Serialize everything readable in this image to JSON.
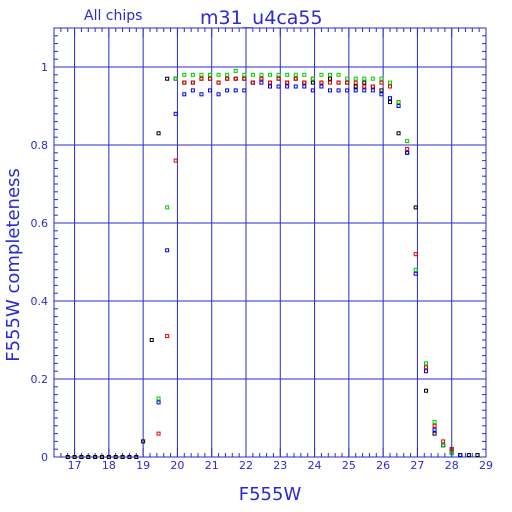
{
  "chart_data": {
    "type": "scatter",
    "title": "m31_u4ca55",
    "subtitle": "All chips",
    "xlabel": "F555W",
    "ylabel": "F555W completeness",
    "xlim": [
      16.4,
      29.0
    ],
    "ylim": [
      0,
      1.1
    ],
    "xticks": [
      17,
      18,
      19,
      20,
      21,
      22,
      23,
      24,
      25,
      26,
      27,
      28,
      29
    ],
    "xtick_labels": [
      "17",
      "18",
      "19",
      "20",
      "21",
      "22",
      "23",
      "24",
      "25",
      "26",
      "27",
      "28",
      "29"
    ],
    "yticks": [
      0,
      0.2,
      0.4,
      0.6,
      0.8,
      1.0
    ],
    "ytick_labels": [
      "0",
      "0.2",
      "0.4",
      "0.6",
      "0.8",
      "1"
    ],
    "grid": true,
    "legend": "none",
    "colors": {
      "axes": "#2a2ad0",
      "grid": "#2a2ad0"
    },
    "series": [
      {
        "color": "#000000",
        "x": [
          16.8,
          17.0,
          17.2,
          17.4,
          17.6,
          17.8,
          18.0,
          18.2,
          18.4,
          18.6,
          18.8,
          19.0,
          19.25,
          19.45,
          19.7,
          19.95,
          20.2,
          20.45,
          20.7,
          20.95,
          21.2,
          21.45,
          21.7,
          21.95,
          22.2,
          22.45,
          22.7,
          22.95,
          23.2,
          23.45,
          23.7,
          23.95,
          24.2,
          24.45,
          24.7,
          24.95,
          25.2,
          25.45,
          25.7,
          25.95,
          26.2,
          26.45,
          26.7,
          26.95,
          27.25,
          27.5,
          27.75,
          28.0,
          28.25,
          28.5,
          28.75
        ],
        "y": [
          0,
          0,
          0,
          0,
          0,
          0,
          0,
          0,
          0,
          0,
          0,
          0.04,
          0.3,
          0.83,
          0.97,
          0.97,
          0.96,
          0.96,
          0.97,
          0.97,
          0.96,
          0.97,
          0.97,
          0.97,
          0.96,
          0.97,
          0.96,
          0.97,
          0.96,
          0.97,
          0.96,
          0.96,
          0.96,
          0.97,
          0.96,
          0.96,
          0.95,
          0.96,
          0.95,
          0.94,
          0.91,
          0.83,
          0.78,
          0.64,
          0.17,
          0.06,
          0.03,
          0.02,
          0.005,
          0.005,
          0.005
        ]
      },
      {
        "color": "#0000e0",
        "x": [
          19.45,
          19.7,
          19.95,
          20.2,
          20.45,
          20.7,
          20.95,
          21.2,
          21.45,
          21.7,
          21.95,
          22.2,
          22.45,
          22.7,
          22.95,
          23.2,
          23.45,
          23.7,
          23.95,
          24.2,
          24.45,
          24.7,
          24.95,
          25.2,
          25.45,
          25.7,
          25.95,
          26.2,
          26.45,
          26.7,
          26.95,
          27.25,
          27.5,
          27.75,
          28.0,
          28.25
        ],
        "y": [
          0.14,
          0.53,
          0.88,
          0.93,
          0.94,
          0.93,
          0.94,
          0.93,
          0.94,
          0.94,
          0.94,
          0.96,
          0.96,
          0.95,
          0.95,
          0.95,
          0.95,
          0.95,
          0.94,
          0.95,
          0.94,
          0.94,
          0.94,
          0.94,
          0.94,
          0.94,
          0.93,
          0.92,
          0.9,
          0.78,
          0.47,
          0.22,
          0.07,
          0.03,
          0.01,
          0.005
        ]
      },
      {
        "color": "#dd0000",
        "x": [
          19.45,
          19.7,
          19.95,
          20.2,
          20.45,
          20.7,
          20.95,
          21.2,
          21.45,
          21.7,
          21.95,
          22.2,
          22.45,
          22.7,
          22.95,
          23.2,
          23.45,
          23.7,
          23.95,
          24.2,
          24.45,
          24.7,
          24.95,
          25.2,
          25.45,
          25.7,
          25.95,
          26.2,
          26.45,
          26.7,
          26.95,
          27.25,
          27.5,
          27.75,
          28.0
        ],
        "y": [
          0.06,
          0.31,
          0.76,
          0.96,
          0.96,
          0.97,
          0.97,
          0.96,
          0.97,
          0.97,
          0.97,
          0.96,
          0.97,
          0.96,
          0.97,
          0.96,
          0.97,
          0.96,
          0.97,
          0.96,
          0.96,
          0.96,
          0.96,
          0.96,
          0.95,
          0.95,
          0.96,
          0.95,
          0.91,
          0.79,
          0.52,
          0.23,
          0.08,
          0.04,
          0.02
        ]
      },
      {
        "color": "#00cc00",
        "x": [
          19.45,
          19.7,
          19.95,
          20.2,
          20.45,
          20.7,
          20.95,
          21.2,
          21.45,
          21.7,
          21.95,
          22.2,
          22.45,
          22.7,
          22.95,
          23.2,
          23.45,
          23.7,
          23.95,
          24.2,
          24.45,
          24.7,
          24.95,
          25.2,
          25.45,
          25.7,
          25.95,
          26.2,
          26.45,
          26.7,
          26.95,
          27.25,
          27.5,
          27.75,
          28.0
        ],
        "y": [
          0.15,
          0.64,
          0.97,
          0.98,
          0.98,
          0.98,
          0.98,
          0.98,
          0.98,
          0.99,
          0.98,
          0.98,
          0.98,
          0.98,
          0.98,
          0.98,
          0.98,
          0.98,
          0.97,
          0.98,
          0.98,
          0.98,
          0.97,
          0.97,
          0.97,
          0.97,
          0.97,
          0.96,
          0.91,
          0.81,
          0.48,
          0.24,
          0.09,
          0.03,
          0.01
        ]
      }
    ]
  }
}
